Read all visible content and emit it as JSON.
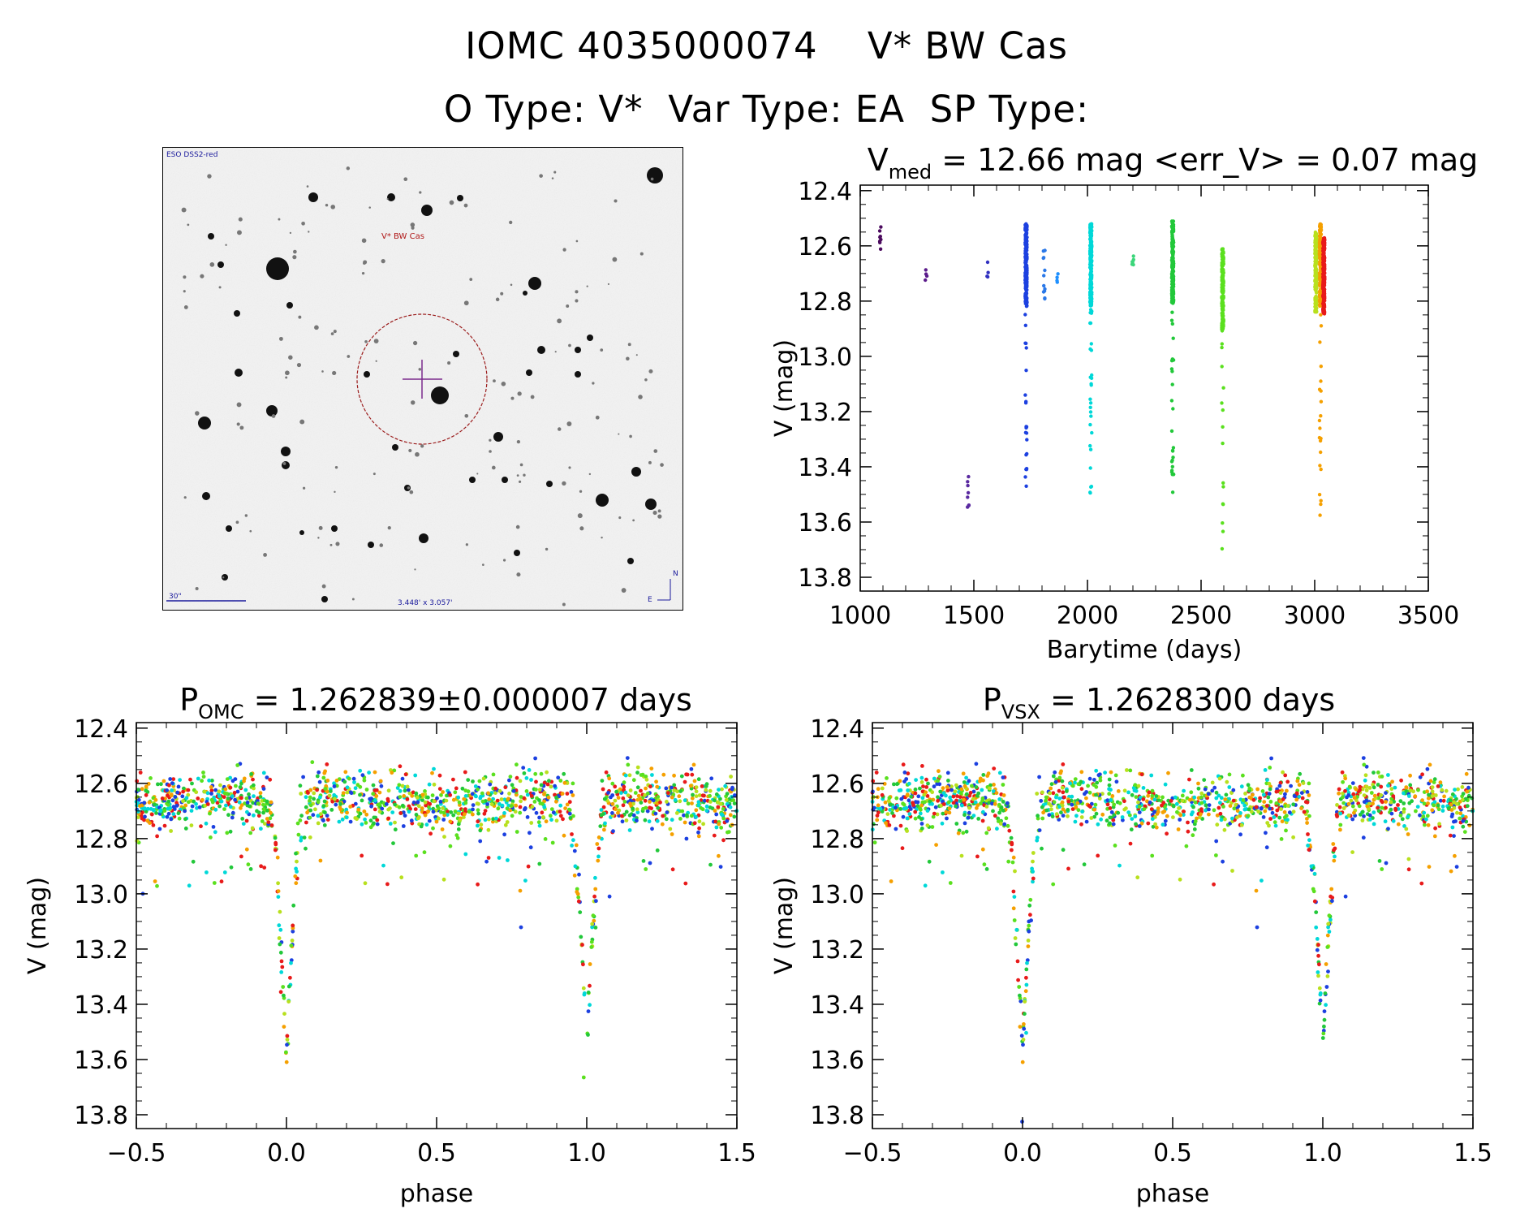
{
  "header": {
    "line1_id": "IOMC 4035000074",
    "line1_name": "V* BW Cas",
    "line2": "O Type: V*  Var Type: EA  SP Type:"
  },
  "finder_chart": {
    "survey_label": "ESO DSS2-red",
    "target_label": "V* BW Cas",
    "scale_label": "30\"",
    "fov_label": "3.448' x 3.057'",
    "north_label": "N",
    "east_label": "E"
  },
  "colors": {
    "axis": "#000000",
    "circle": "#9b1c1c",
    "crosshair": "#7b2a8c",
    "label_blue": "#1a1a9c",
    "label_red": "#b01818"
  },
  "chart_data": [
    {
      "id": "lightcurve",
      "type": "scatter",
      "title_main": "V",
      "title_sub": "med",
      "title_rest": " = 12.66 mag <err_V> = 0.07 mag",
      "xlabel": "Barytime (days)",
      "ylabel": "V (mag)",
      "xlim": [
        1000,
        3500
      ],
      "ylim": [
        13.85,
        12.38
      ],
      "xticks": [
        1000,
        1500,
        2000,
        2500,
        3000,
        3500
      ],
      "xtick_labels": [
        "1000",
        "1500",
        "2000",
        "2500",
        "3000",
        "3500"
      ],
      "yticks": [
        12.4,
        12.6,
        12.8,
        13.0,
        13.2,
        13.4,
        13.6,
        13.8
      ],
      "ytick_labels": [
        "12.4",
        "12.6",
        "12.8",
        "13.0",
        "13.2",
        "13.4",
        "13.6",
        "13.8"
      ],
      "groups": [
        {
          "x": 1090,
          "ymin": 12.53,
          "ymax": 12.63,
          "n": 8,
          "color": "#4b0a5e"
        },
        {
          "x": 1290,
          "ymin": 12.68,
          "ymax": 12.73,
          "n": 4,
          "color": "#5a1a8a"
        },
        {
          "x": 1475,
          "ymin": 13.42,
          "ymax": 13.57,
          "n": 8,
          "color": "#5a2aa0"
        },
        {
          "x": 1560,
          "ymin": 12.65,
          "ymax": 12.72,
          "n": 4,
          "color": "#3030c0"
        },
        {
          "x": 1730,
          "ymin": 12.52,
          "ymax": 13.51,
          "n": 220,
          "color": "#1c40e0"
        },
        {
          "x": 1810,
          "ymin": 12.61,
          "ymax": 12.81,
          "n": 12,
          "color": "#2a78e8"
        },
        {
          "x": 1870,
          "ymin": 12.7,
          "ymax": 12.74,
          "n": 4,
          "color": "#1e90ff"
        },
        {
          "x": 2015,
          "ymin": 12.52,
          "ymax": 13.55,
          "n": 260,
          "color": "#00d8d8"
        },
        {
          "x": 2200,
          "ymin": 12.59,
          "ymax": 12.67,
          "n": 6,
          "color": "#3bd67a"
        },
        {
          "x": 2375,
          "ymin": 12.51,
          "ymax": 13.52,
          "n": 220,
          "color": "#22c83a"
        },
        {
          "x": 2595,
          "ymin": 12.61,
          "ymax": 13.7,
          "n": 180,
          "color": "#5ae01e"
        },
        {
          "x": 3005,
          "ymin": 12.55,
          "ymax": 12.84,
          "n": 200,
          "color": "#b8e01e"
        },
        {
          "x": 3025,
          "ymin": 12.52,
          "ymax": 13.59,
          "n": 180,
          "color": "#f5a000"
        },
        {
          "x": 3040,
          "ymin": 12.57,
          "ymax": 12.85,
          "n": 220,
          "color": "#e81a1a"
        }
      ]
    },
    {
      "id": "phase_omc",
      "type": "scatter",
      "title_main": "P",
      "title_sub": "OMC",
      "title_rest": " = 1.262839±0.000007 days",
      "xlabel": "phase",
      "ylabel": "V (mag)",
      "xlim": [
        -0.5,
        1.5
      ],
      "ylim": [
        13.85,
        12.38
      ],
      "xticks": [
        -0.5,
        0.0,
        0.5,
        1.0,
        1.5
      ],
      "xtick_labels": [
        "−0.5",
        "0.0",
        "0.5",
        "1.0",
        "1.5"
      ],
      "yticks": [
        12.4,
        12.6,
        12.8,
        13.0,
        13.2,
        13.4,
        13.6,
        13.8
      ],
      "ytick_labels": [
        "12.4",
        "12.6",
        "12.8",
        "13.0",
        "13.2",
        "13.4",
        "13.6",
        "13.8"
      ],
      "baseline_mag": 12.66,
      "primary_eclipse_phase": 0.0,
      "primary_eclipse_depth": 13.58,
      "eclipse_halfwidth": 0.06,
      "palette": [
        "#1c40e0",
        "#00d8d8",
        "#22c83a",
        "#5ae01e",
        "#b8e01e",
        "#f5a000",
        "#e81a1a"
      ]
    },
    {
      "id": "phase_vsx",
      "type": "scatter",
      "title_main": "P",
      "title_sub": "VSX",
      "title_rest": " = 1.2628300 days",
      "xlabel": "phase",
      "ylabel": "V (mag)",
      "xlim": [
        -0.5,
        1.5
      ],
      "ylim": [
        13.85,
        12.38
      ],
      "xticks": [
        -0.5,
        0.0,
        0.5,
        1.0,
        1.5
      ],
      "xtick_labels": [
        "−0.5",
        "0.0",
        "0.5",
        "1.0",
        "1.5"
      ],
      "yticks": [
        12.4,
        12.6,
        12.8,
        13.0,
        13.2,
        13.4,
        13.6,
        13.8
      ],
      "ytick_labels": [
        "12.4",
        "12.6",
        "12.8",
        "13.0",
        "13.2",
        "13.4",
        "13.6",
        "13.8"
      ],
      "baseline_mag": 12.66,
      "primary_eclipse_phase": 0.0,
      "primary_eclipse_depth": 13.58,
      "eclipse_halfwidth": 0.06,
      "palette": [
        "#1c40e0",
        "#00d8d8",
        "#22c83a",
        "#5ae01e",
        "#b8e01e",
        "#f5a000",
        "#e81a1a"
      ]
    }
  ]
}
